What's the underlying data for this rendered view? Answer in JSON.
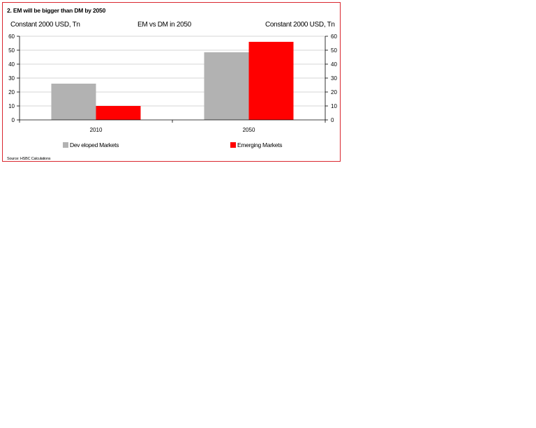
{
  "chart_data": {
    "type": "bar",
    "title": "2. EM will be bigger than DM by 2050",
    "subtitle": "EM vs DM in 2050",
    "ylabel_left": "Constant 2000 USD, Tn",
    "ylabel_right": "Constant 2000 USD, Tn",
    "categories": [
      "2010",
      "2050"
    ],
    "series": [
      {
        "name": "Dev eloped Markets",
        "values": [
          26,
          48.5
        ],
        "color": "#b2b2b2"
      },
      {
        "name": "Emerging Markets",
        "values": [
          10,
          56
        ],
        "color": "#ff0000"
      }
    ],
    "ylim": [
      0,
      60
    ],
    "yticks": [
      0,
      10,
      20,
      30,
      40,
      50,
      60
    ],
    "grid": true,
    "legend_position": "bottom",
    "source": "Source: HSBC Calculations"
  }
}
